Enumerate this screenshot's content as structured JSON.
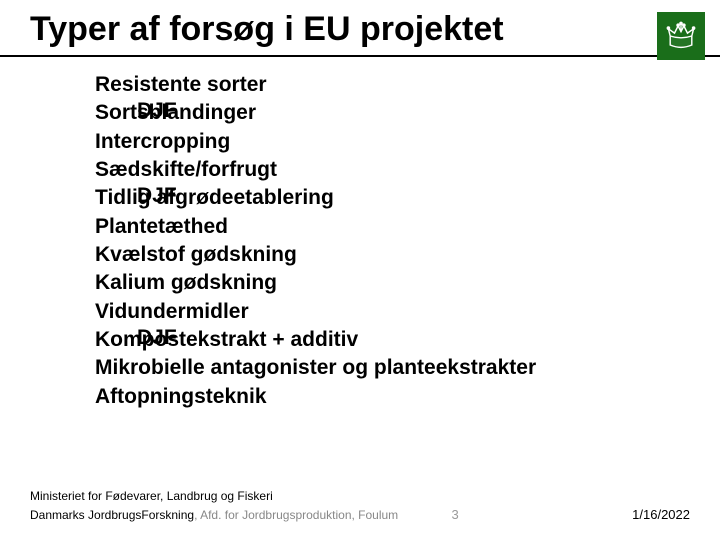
{
  "title": "Typer af forsøg i EU projektet",
  "rows": [
    {
      "tag": "",
      "text": "Resistente sorter"
    },
    {
      "tag": "DJF",
      "text": "Sortsblandinger"
    },
    {
      "tag": "",
      "text": "Intercropping"
    },
    {
      "tag": "",
      "text": "Sædskifte/forfrugt"
    },
    {
      "tag": "DJF",
      "text": "Tidlig afgrødeetablering"
    },
    {
      "tag": "",
      "text": "Plantetæthed"
    },
    {
      "tag": "",
      "text": "Kvælstof gødskning"
    },
    {
      "tag": "",
      "text": "Kalium gødskning"
    },
    {
      "tag": "",
      "text": "Vidundermidler"
    },
    {
      "tag": "DJF",
      "text": "Kompostekstrakt + additiv"
    },
    {
      "tag": "",
      "text": "Mikrobielle antagonister og planteekstrakter"
    },
    {
      "tag": "",
      "text": "Aftopningsteknik"
    }
  ],
  "footer": {
    "ministry": "Ministeriet for Fødevarer, Landbrug og Fiskeri",
    "org": "Danmarks JordbrugsForskning",
    "dept": ", Afd. for Jordbrugsproduktion, Foulum",
    "page": "3",
    "date": "1/16/2022"
  },
  "colors": {
    "logo_bg": "#1a6e1a",
    "text": "#000000",
    "muted": "#9a9a9a"
  }
}
